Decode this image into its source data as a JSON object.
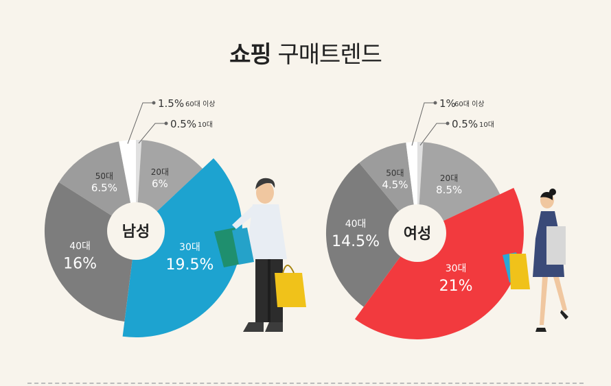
{
  "title": {
    "bold": "쇼핑",
    "light": "구매트렌드"
  },
  "colors": {
    "c10": "#e0e0e0",
    "c20": "#a5a5a5",
    "c30_male": "#1da3d0",
    "c30_female": "#f23a3e",
    "c40": "#7d7d7d",
    "c50": "#9c9c9c",
    "c60": "#ffffff",
    "bg": "#f8f4ec"
  },
  "chart_data": [
    {
      "type": "pie",
      "center_label": "남성",
      "slices": [
        {
          "age": "10대",
          "value": 0.5,
          "label": "0.5%",
          "callout": "10대"
        },
        {
          "age": "20대",
          "value": 6,
          "label": "6%"
        },
        {
          "age": "30대",
          "value": 19.5,
          "label": "19.5%"
        },
        {
          "age": "40대",
          "value": 16,
          "label": "16%"
        },
        {
          "age": "50대",
          "value": 6.5,
          "label": "6.5%"
        },
        {
          "age": "60대 이상",
          "value": 1.5,
          "label": "1.5%",
          "callout": "60대 이상"
        }
      ]
    },
    {
      "type": "pie",
      "center_label": "여성",
      "slices": [
        {
          "age": "10대",
          "value": 0.5,
          "label": "0.5%",
          "callout": "10대"
        },
        {
          "age": "20대",
          "value": 8.5,
          "label": "8.5%"
        },
        {
          "age": "30대",
          "value": 21,
          "label": "21%"
        },
        {
          "age": "40대",
          "value": 14.5,
          "label": "14.5%"
        },
        {
          "age": "50대",
          "value": 4.5,
          "label": "4.5%"
        },
        {
          "age": "60대 이상",
          "value": 1,
          "label": "1%",
          "callout": "60대 이상"
        }
      ]
    }
  ]
}
